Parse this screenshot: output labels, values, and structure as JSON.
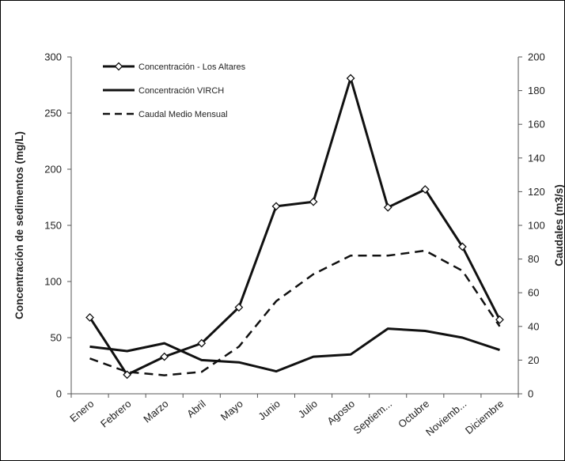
{
  "chart_data": {
    "type": "line",
    "categories": [
      "Enero",
      "Febrero",
      "Marzo",
      "Abril",
      "Mayo",
      "Junio",
      "Julio",
      "Agosto",
      "Septiem...",
      "Octubre",
      "Noviemb...",
      "Diciembre"
    ],
    "ylabel": "Concentración de sedimentos (mg/L)",
    "y2label": "Caudales (m3/s)",
    "ylim": [
      0,
      300
    ],
    "y2lim": [
      0,
      200
    ],
    "yticks": [
      0,
      50,
      100,
      150,
      200,
      250,
      300
    ],
    "y2ticks": [
      0,
      20,
      40,
      60,
      80,
      100,
      120,
      140,
      160,
      180,
      200
    ],
    "grid": false,
    "legend_position": "top-left",
    "series": [
      {
        "name": "Concentración - Los Altares",
        "axis": "left",
        "style": "solid-diamond-markers",
        "values": [
          68,
          17,
          33,
          45,
          77,
          167,
          171,
          281,
          166,
          182,
          131,
          66
        ]
      },
      {
        "name": "Concentración VIRCH",
        "axis": "left",
        "style": "solid",
        "values": [
          42,
          38,
          45,
          30,
          28,
          20,
          33,
          35,
          58,
          56,
          50,
          39
        ]
      },
      {
        "name": "Caudal Medio Mensual",
        "axis": "right",
        "style": "dashed",
        "values": [
          21,
          13,
          11,
          13,
          28,
          55,
          71,
          82,
          82,
          85,
          73,
          40
        ]
      }
    ]
  },
  "colors": {
    "line": "#111111",
    "border": "#000000"
  }
}
